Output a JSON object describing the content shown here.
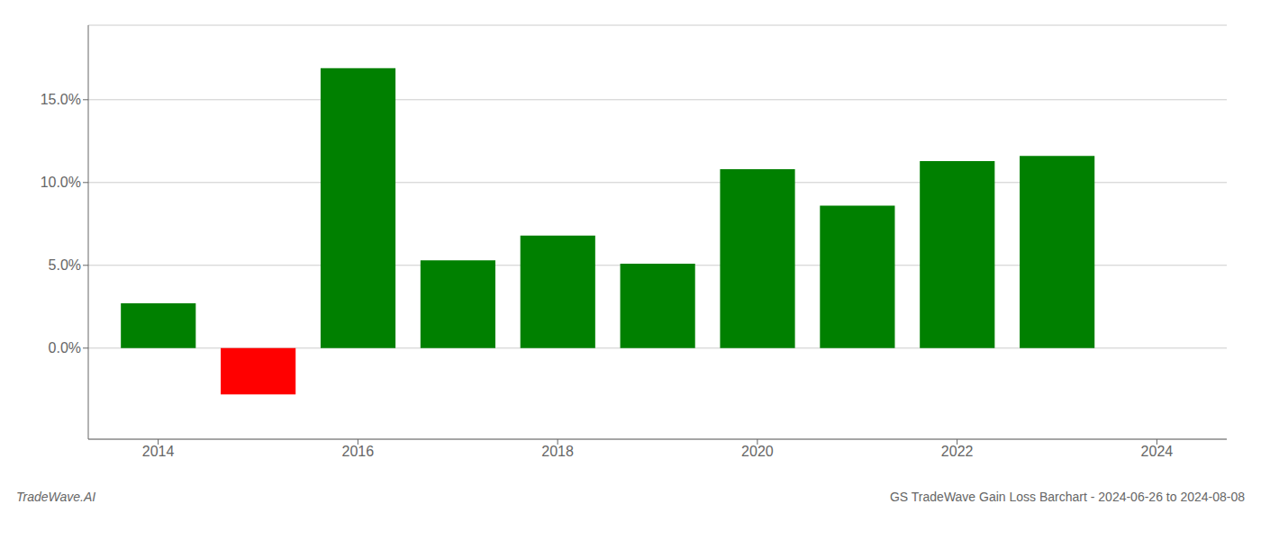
{
  "chart_data": {
    "type": "bar",
    "title": "GS TradeWave Gain Loss Barchart - 2024-06-26 to 2024-08-08",
    "annotations": [
      "TradeWave.AI"
    ],
    "x": [
      2014,
      2015,
      2016,
      2017,
      2018,
      2019,
      2020,
      2021,
      2022,
      2023
    ],
    "values": [
      0.027,
      -0.028,
      0.169,
      0.053,
      0.068,
      0.051,
      0.108,
      0.086,
      0.113,
      0.116
    ],
    "colors": [
      "#008000",
      "#ff0000",
      "#008000",
      "#008000",
      "#008000",
      "#008000",
      "#008000",
      "#008000",
      "#008000",
      "#008000"
    ],
    "xlim": [
      2013.3,
      2024.7
    ],
    "xticks": [
      2014,
      2016,
      2018,
      2020,
      2022,
      2024
    ],
    "ylim": [
      -0.055,
      0.195
    ],
    "yticks": [
      {
        "value": 0.0,
        "label": "0.0%"
      },
      {
        "value": 0.05,
        "label": "5.0%"
      },
      {
        "value": 0.1,
        "label": "10.0%"
      },
      {
        "value": 0.15,
        "label": "15.0%"
      }
    ],
    "grid": "y"
  }
}
